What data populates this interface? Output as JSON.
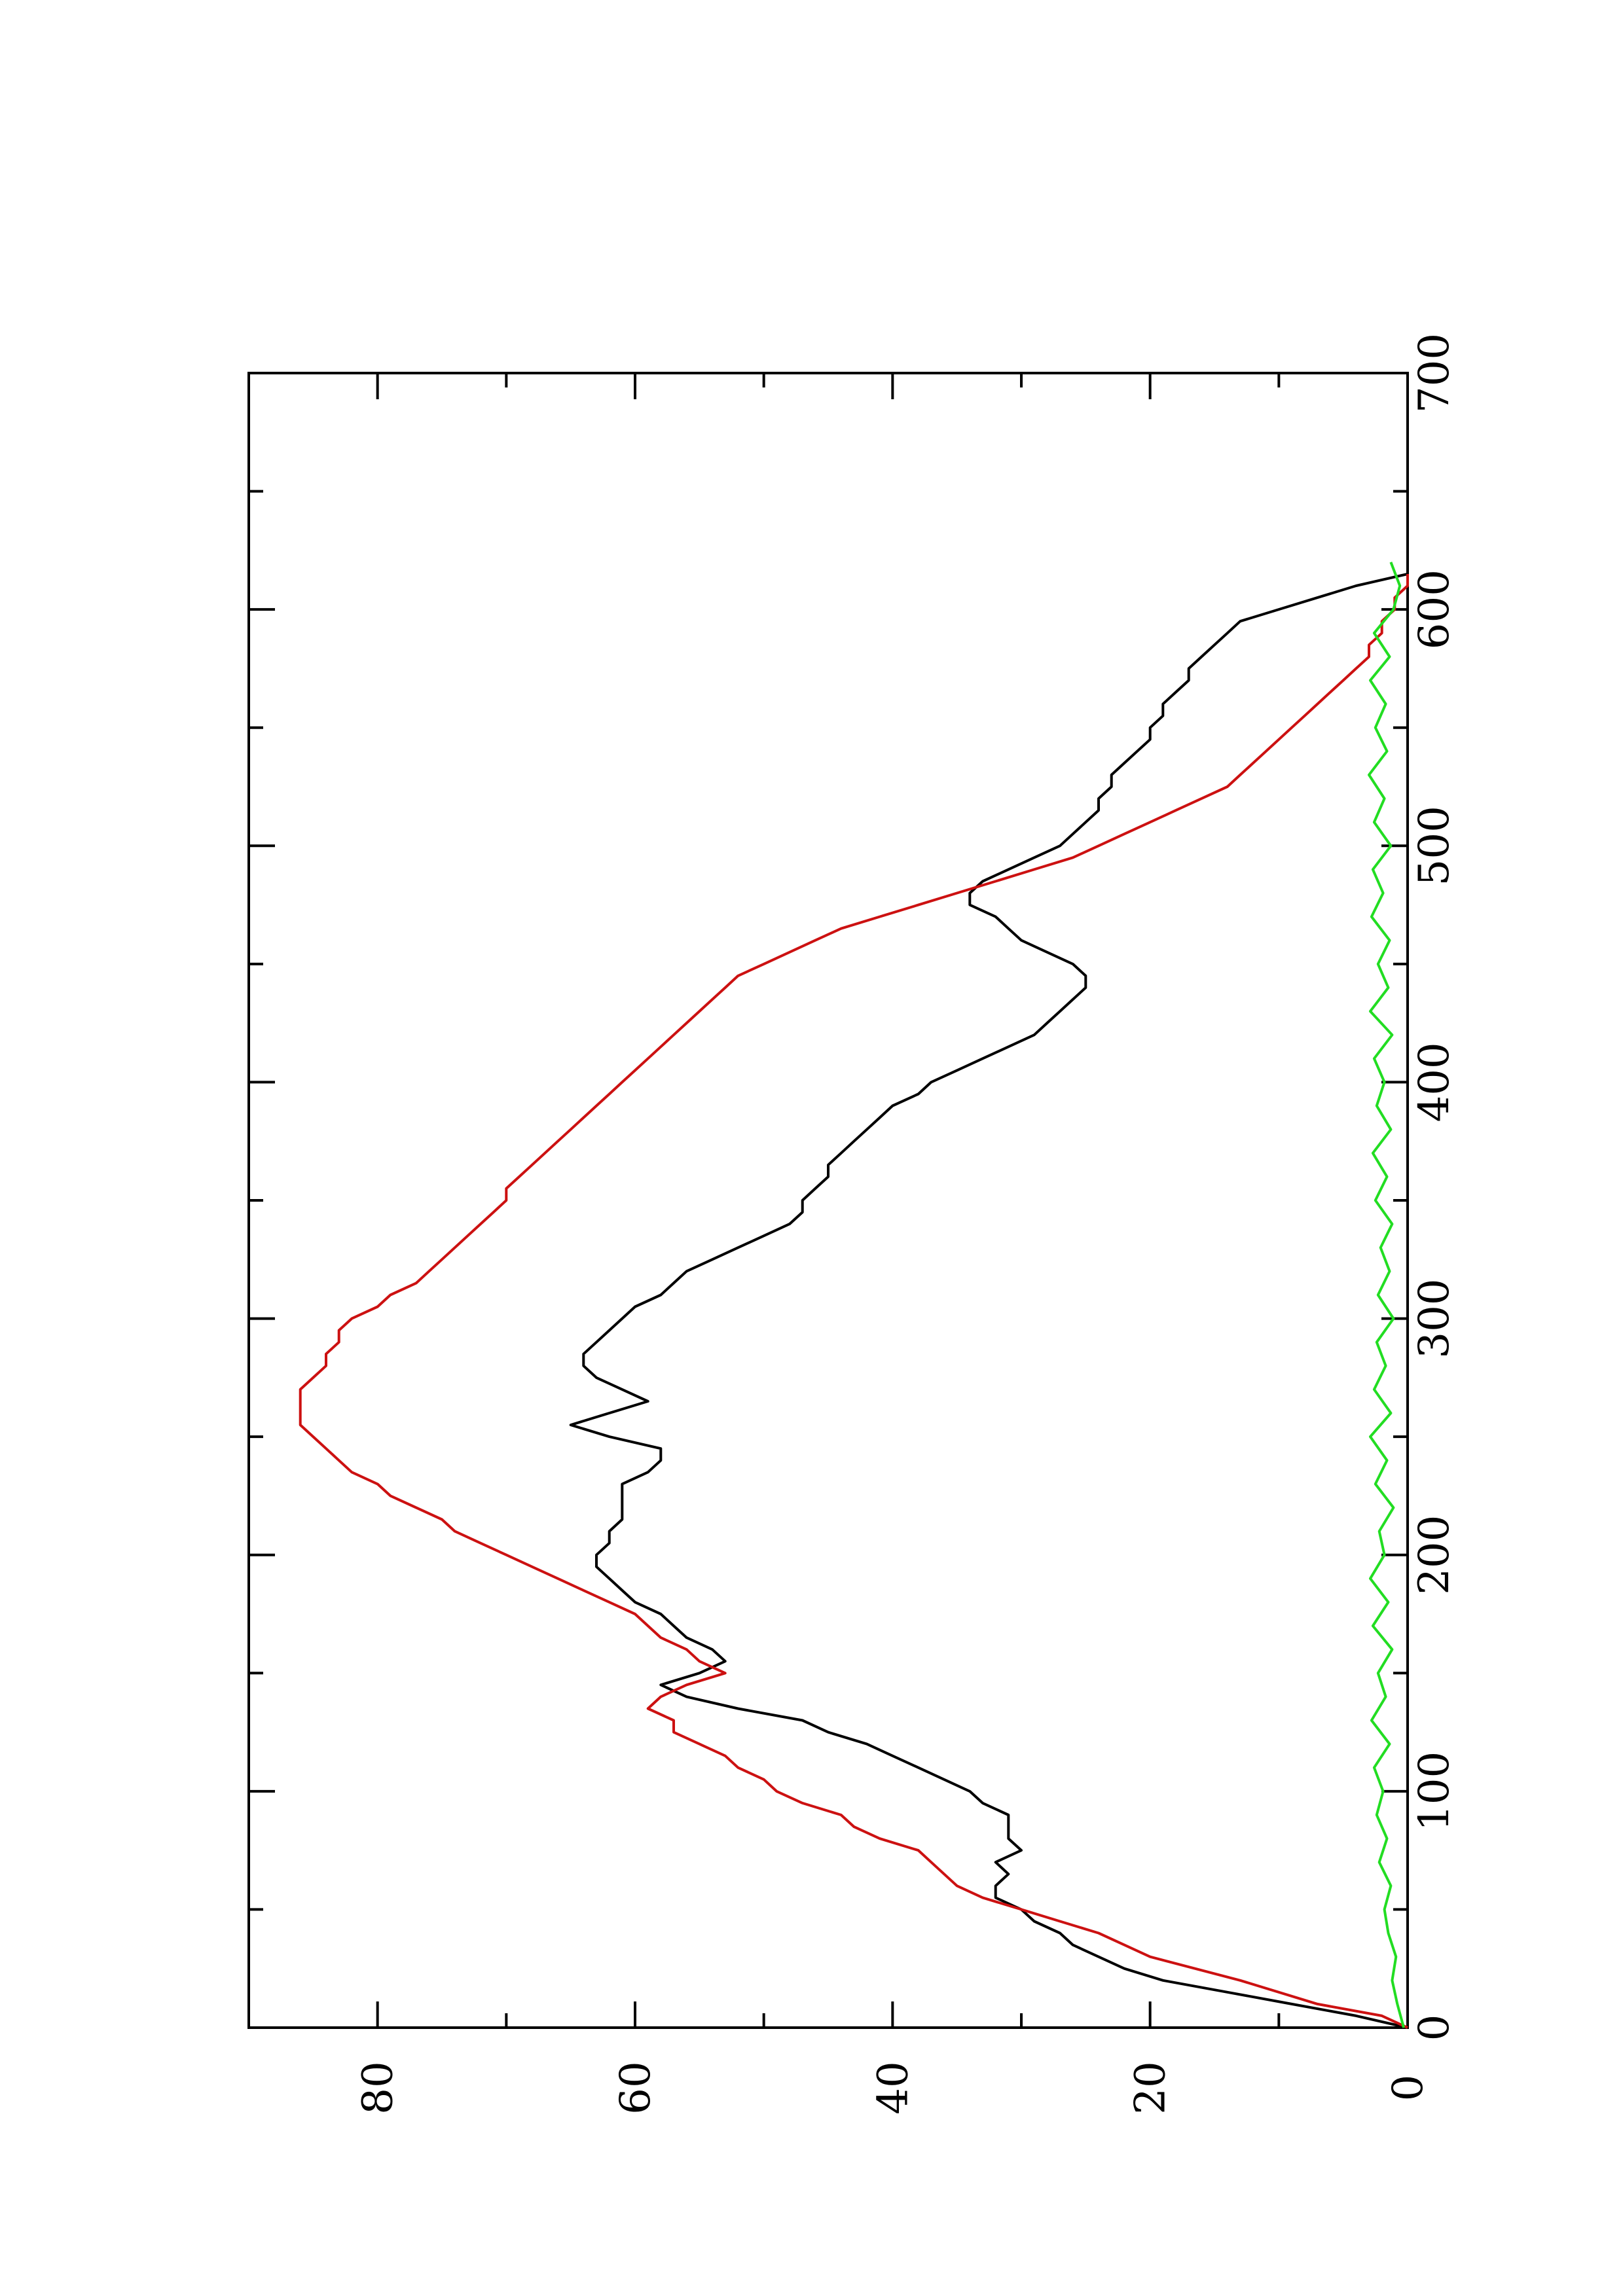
{
  "chart_data": {
    "type": "line",
    "title": "",
    "xlabel": "",
    "ylabel": "",
    "xlim": [
      0,
      700
    ],
    "ylim": [
      0,
      90
    ],
    "x_ticks": [
      0,
      100,
      200,
      300,
      400,
      500,
      600,
      700
    ],
    "x_minor_ticks": [
      50,
      150,
      250,
      350,
      450,
      550,
      650
    ],
    "y_ticks": [
      0,
      20,
      40,
      60,
      80
    ],
    "y_minor_ticks": [
      10,
      30,
      50,
      70
    ],
    "grid": false,
    "legend": "none",
    "orientation": "rotated 90 degrees counter-clockwise on the page",
    "series": [
      {
        "color": "#000000",
        "x": [
          0,
          5,
          10,
          15,
          20,
          25,
          30,
          35,
          40,
          45,
          50,
          55,
          60,
          65,
          70,
          75,
          80,
          85,
          90,
          95,
          100,
          105,
          110,
          115,
          120,
          125,
          130,
          135,
          140,
          145,
          150,
          155,
          160,
          165,
          170,
          175,
          180,
          185,
          190,
          195,
          200,
          205,
          210,
          215,
          220,
          225,
          230,
          235,
          240,
          245,
          250,
          255,
          260,
          265,
          270,
          275,
          280,
          285,
          290,
          295,
          300,
          305,
          310,
          315,
          320,
          325,
          330,
          335,
          340,
          345,
          350,
          355,
          360,
          365,
          370,
          375,
          380,
          385,
          390,
          395,
          400,
          405,
          410,
          415,
          420,
          425,
          430,
          435,
          440,
          445,
          450,
          455,
          460,
          465,
          470,
          475,
          480,
          485,
          490,
          495,
          500,
          505,
          510,
          515,
          520,
          525,
          530,
          535,
          540,
          545,
          550,
          555,
          560,
          565,
          570,
          575,
          580,
          585,
          590,
          595,
          600,
          605,
          610,
          615
        ],
        "y": [
          0,
          4,
          9,
          14,
          19,
          22,
          24,
          26,
          27,
          29,
          30,
          32,
          32,
          31,
          32,
          30,
          31,
          31,
          31,
          33,
          34,
          36,
          38,
          40,
          42,
          45,
          47,
          52,
          56,
          58,
          55,
          53,
          54,
          56,
          57,
          58,
          60,
          61,
          62,
          63,
          63,
          62,
          62,
          61,
          61,
          61,
          61,
          59,
          58,
          58,
          62,
          65,
          62,
          59,
          61,
          63,
          64,
          64,
          63,
          62,
          61,
          60,
          58,
          57,
          56,
          54,
          52,
          50,
          48,
          47,
          47,
          46,
          45,
          45,
          44,
          43,
          42,
          41,
          40,
          38,
          37,
          35,
          33,
          31,
          29,
          28,
          27,
          26,
          25,
          25,
          26,
          28,
          30,
          31,
          32,
          34,
          34,
          33,
          31,
          29,
          27,
          26,
          25,
          24,
          24,
          23,
          23,
          22,
          21,
          20,
          20,
          19,
          19,
          18,
          17,
          17,
          16,
          15,
          14,
          13,
          10,
          7,
          4,
          0
        ]
      },
      {
        "color": "#cc1111",
        "x": [
          0,
          5,
          10,
          20,
          30,
          35,
          40,
          45,
          50,
          55,
          60,
          70,
          75,
          80,
          85,
          90,
          95,
          100,
          105,
          110,
          115,
          120,
          125,
          130,
          135,
          140,
          145,
          150,
          155,
          160,
          165,
          170,
          175,
          180,
          185,
          190,
          195,
          200,
          205,
          210,
          215,
          220,
          225,
          230,
          235,
          240,
          245,
          250,
          255,
          260,
          265,
          270,
          275,
          280,
          285,
          290,
          295,
          300,
          305,
          310,
          315,
          320,
          325,
          330,
          335,
          340,
          345,
          350,
          355,
          360,
          365,
          370,
          375,
          380,
          385,
          390,
          395,
          400,
          405,
          410,
          415,
          420,
          425,
          430,
          435,
          440,
          445,
          450,
          455,
          460,
          465,
          470,
          475,
          480,
          485,
          490,
          495,
          500,
          505,
          510,
          515,
          520,
          525,
          530,
          535,
          540,
          545,
          550,
          555,
          560,
          565,
          570,
          575,
          580,
          585,
          590,
          595,
          600,
          605,
          610,
          615
        ],
        "y": [
          0,
          2,
          7,
          13,
          20,
          22,
          24,
          27,
          30,
          33,
          35,
          37,
          38,
          41,
          43,
          44,
          47,
          49,
          50,
          52,
          53,
          55,
          57,
          57,
          59,
          58,
          56,
          53,
          55,
          56,
          58,
          59,
          60,
          62,
          64,
          66,
          68,
          70,
          72,
          74,
          75,
          77,
          79,
          80,
          82,
          83,
          84,
          85,
          86,
          86,
          86,
          86,
          85,
          84,
          84,
          83,
          83,
          82,
          80,
          79,
          77,
          76,
          75,
          74,
          73,
          72,
          71,
          70,
          70,
          69,
          68,
          67,
          66,
          65,
          64,
          63,
          62,
          61,
          60,
          59,
          58,
          57,
          56,
          55,
          54,
          53,
          52,
          50,
          48,
          46,
          44,
          41,
          38,
          35,
          32,
          29,
          26,
          24,
          22,
          20,
          18,
          16,
          14,
          13,
          12,
          11,
          10,
          9,
          8,
          7,
          6,
          5,
          4,
          3,
          3,
          2,
          2,
          1,
          1,
          0,
          0
        ]
      },
      {
        "color": "#22dd22",
        "x": [
          0,
          10,
          20,
          30,
          40,
          50,
          60,
          70,
          80,
          90,
          100,
          110,
          120,
          130,
          140,
          150,
          160,
          170,
          180,
          190,
          200,
          210,
          220,
          230,
          240,
          250,
          260,
          270,
          280,
          290,
          300,
          310,
          320,
          330,
          340,
          350,
          360,
          370,
          380,
          390,
          400,
          410,
          420,
          430,
          440,
          450,
          460,
          470,
          480,
          490,
          500,
          510,
          520,
          530,
          540,
          550,
          560,
          570,
          580,
          590,
          600,
          610,
          620
        ],
        "y": [
          0.3,
          0.8,
          1.2,
          0.9,
          1.5,
          1.8,
          1.3,
          2.2,
          1.6,
          2.4,
          1.9,
          2.6,
          1.4,
          2.8,
          1.7,
          2.3,
          1.2,
          2.7,
          1.5,
          2.9,
          1.8,
          2.2,
          1.1,
          2.5,
          1.6,
          2.9,
          1.3,
          2.6,
          1.7,
          2.4,
          1.1,
          2.3,
          1.4,
          2.1,
          1.2,
          2.5,
          1.6,
          2.7,
          1.3,
          2.4,
          1.8,
          2.6,
          1.2,
          2.9,
          1.5,
          2.3,
          1.4,
          2.8,
          1.9,
          2.7,
          1.3,
          2.6,
          1.8,
          3.0,
          1.6,
          2.5,
          1.7,
          2.9,
          1.4,
          2.6,
          1.1,
          0.6,
          1.3
        ]
      }
    ]
  }
}
